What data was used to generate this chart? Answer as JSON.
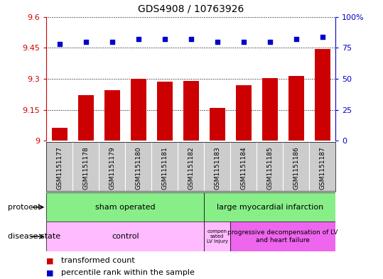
{
  "title": "GDS4908 / 10763926",
  "samples": [
    "GSM1151177",
    "GSM1151178",
    "GSM1151179",
    "GSM1151180",
    "GSM1151181",
    "GSM1151182",
    "GSM1151183",
    "GSM1151184",
    "GSM1151185",
    "GSM1151186",
    "GSM1151187"
  ],
  "bar_values": [
    9.065,
    9.22,
    9.245,
    9.3,
    9.285,
    9.29,
    9.16,
    9.27,
    9.305,
    9.315,
    9.445
  ],
  "bar_base": 9.0,
  "percentile_values": [
    78,
    80,
    80,
    82,
    82,
    82,
    80,
    80,
    80,
    82,
    84
  ],
  "ylim": [
    9.0,
    9.6
  ],
  "yticks": [
    9.0,
    9.15,
    9.3,
    9.45,
    9.6
  ],
  "ytick_labels": [
    "9",
    "9.15",
    "9.3",
    "9.45",
    "9.6"
  ],
  "right_yticks": [
    0,
    25,
    50,
    75,
    100
  ],
  "right_ytick_labels": [
    "0",
    "25",
    "50",
    "75",
    "100%"
  ],
  "bar_color": "#cc0000",
  "dot_color": "#0000cc",
  "bar_width": 0.6,
  "sham_color": "#88ee88",
  "large_mi_color": "#88ee88",
  "control_color": "#ffbbff",
  "comp_color": "#ffbbff",
  "prog_color": "#ee66ee",
  "sample_bg_color": "#cccccc",
  "legend_label_bar": "transformed count",
  "legend_label_pct": "percentile rank within the sample",
  "left_axis_color": "#cc0000",
  "right_axis_color": "#0000cc"
}
